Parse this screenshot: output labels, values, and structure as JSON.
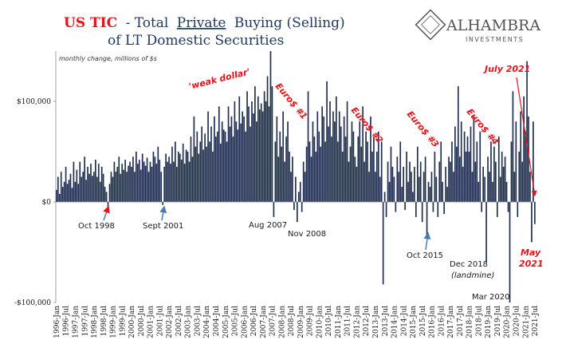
{
  "chart_data": {
    "type": "bar",
    "title_parts": [
      "US TIC",
      "- Total",
      "Private",
      "Buying (Selling)"
    ],
    "title_line2": "of LT Domestic Securities",
    "subtitle": "monthly change, millions of $s",
    "logo": [
      "ALHAMBRA",
      "INVESTMENTS"
    ],
    "annotations": {
      "weak_dollar": "'weak dollar'",
      "euro1": "Euro$ #1",
      "euro2": "Euro$ #2",
      "euro3": "Euro$ #3",
      "euro4": "Euro$ #4",
      "july2021": "July 2021",
      "may2021": [
        "May",
        "2021"
      ],
      "oct1998": "Oct 1998",
      "sept2001": "Sept 2001",
      "aug2007": "Aug 2007",
      "nov2008": "Nov 2008",
      "oct2015": "Oct 2015",
      "dec2018": [
        "Dec 2018",
        "(landmine)"
      ],
      "mar2020": "Mar 2020"
    },
    "color": "#1f2d4e",
    "ylim": [
      -100000,
      150000
    ],
    "yticks": [
      {
        "value": -100000,
        "label": "-$100,000"
      },
      {
        "value": 0,
        "label": "$0"
      },
      {
        "value": 100000,
        "label": "$100,000"
      }
    ],
    "categories": [
      "1996-Jan",
      null,
      null,
      null,
      null,
      null,
      "1996-Jul",
      null,
      null,
      null,
      null,
      null,
      "1997-Jan",
      null,
      null,
      null,
      null,
      null,
      "1997-Jul",
      null,
      null,
      null,
      null,
      null,
      "1998-Jan",
      null,
      null,
      null,
      null,
      null,
      "1998-Jul",
      null,
      null,
      null,
      null,
      null,
      "1999-Jan",
      null,
      null,
      null,
      null,
      null,
      "1999-Jul",
      null,
      null,
      null,
      null,
      null,
      "2000-Jan",
      null,
      null,
      null,
      null,
      null,
      "2000-Jul",
      null,
      null,
      null,
      null,
      null,
      "2001-Jan",
      null,
      null,
      null,
      null,
      null,
      "2001-Jul",
      null,
      null,
      null,
      null,
      null,
      "2002-Jan",
      null,
      null,
      null,
      null,
      null,
      "2002-Jul",
      null,
      null,
      null,
      null,
      null,
      "2003-Jan",
      null,
      null,
      null,
      null,
      null,
      "2003-Jul",
      null,
      null,
      null,
      null,
      null,
      "2004-Jan",
      null,
      null,
      null,
      null,
      null,
      "2004-Jul",
      null,
      null,
      null,
      null,
      null,
      "2005-Jan",
      null,
      null,
      null,
      null,
      null,
      "2005-Jul",
      null,
      null,
      null,
      null,
      null,
      "2006-Jan",
      null,
      null,
      null,
      null,
      null,
      "2006-Jul",
      null,
      null,
      null,
      null,
      null,
      "2007-Jan",
      null,
      null,
      null,
      null,
      null,
      "2007-Jul",
      null,
      null,
      null,
      null,
      null,
      "2008-Jan",
      null,
      null,
      null,
      null,
      null,
      "2008-Jul",
      null,
      null,
      null,
      null,
      null,
      "2009-Jan",
      null,
      null,
      null,
      null,
      null,
      "2009-Jul",
      null,
      null,
      null,
      null,
      null,
      "2010-Jan",
      null,
      null,
      null,
      null,
      null,
      "2010-Jul",
      null,
      null,
      null,
      null,
      null,
      "2011-Jan",
      null,
      null,
      null,
      null,
      null,
      "2011-Jul",
      null,
      null,
      null,
      null,
      null,
      "2012-Jan",
      null,
      null,
      null,
      null,
      null,
      "2012-Jul",
      null,
      null,
      null,
      null,
      null,
      "2013-Jan",
      null,
      null,
      null,
      null,
      null,
      "2013-Jul",
      null,
      null,
      null,
      null,
      null,
      "2014-Jan",
      null,
      null,
      null,
      null,
      null,
      "2014-Jul",
      null,
      null,
      null,
      null,
      null,
      "2015-Jan",
      null,
      null,
      null,
      null,
      null,
      "2015-Jul",
      null,
      null,
      null,
      null,
      null,
      "2016-Jan",
      null,
      null,
      null,
      null,
      null,
      "2016-Jul",
      null,
      null,
      null,
      null,
      null,
      "2017-Jan",
      null,
      null,
      null,
      null,
      null,
      "2017-Jul",
      null,
      null,
      null,
      null,
      null,
      "2018-Jan",
      null,
      null,
      null,
      null,
      null,
      "2018-Jul",
      null,
      null,
      null,
      null,
      null,
      "2019-Jan",
      null,
      null,
      null,
      null,
      null,
      "2019-Jul",
      null,
      null,
      null,
      null,
      null,
      "2020-Jan",
      null,
      null,
      null,
      null,
      null,
      "2020-Jul",
      null,
      null,
      null,
      null,
      null,
      "2021-Jan",
      null,
      null,
      null,
      null,
      null,
      "2021-Jul"
    ],
    "values": [
      12000,
      25000,
      8000,
      30000,
      15000,
      20000,
      35000,
      18000,
      22000,
      28000,
      14000,
      40000,
      20000,
      32000,
      18000,
      40000,
      25000,
      30000,
      45000,
      22000,
      35000,
      28000,
      38000,
      26000,
      30000,
      42000,
      25000,
      38000,
      20000,
      35000,
      28000,
      15000,
      10000,
      -5000,
      18000,
      30000,
      25000,
      40000,
      30000,
      35000,
      45000,
      28000,
      38000,
      32000,
      42000,
      30000,
      36000,
      40000,
      35000,
      45000,
      30000,
      50000,
      38000,
      42000,
      32000,
      48000,
      40000,
      36000,
      44000,
      30000,
      40000,
      35000,
      50000,
      45000,
      38000,
      55000,
      42000,
      30000,
      -3000,
      35000,
      48000,
      40000,
      45000,
      38000,
      55000,
      40000,
      60000,
      35000,
      50000,
      48000,
      42000,
      58000,
      38000,
      52000,
      50000,
      40000,
      65000,
      45000,
      85000,
      55000,
      70000,
      48000,
      60000,
      75000,
      52000,
      68000,
      55000,
      90000,
      60000,
      75000,
      50000,
      85000,
      65000,
      70000,
      95000,
      58000,
      80000,
      72000,
      70000,
      60000,
      95000,
      75000,
      85000,
      65000,
      100000,
      80000,
      72000,
      105000,
      78000,
      90000,
      85000,
      70000,
      110000,
      95000,
      75000,
      100000,
      88000,
      115000,
      80000,
      105000,
      92000,
      98000,
      90000,
      110000,
      100000,
      125000,
      95000,
      150000,
      115000,
      -15000,
      60000,
      85000,
      45000,
      70000,
      55000,
      90000,
      40000,
      65000,
      80000,
      50000,
      30000,
      45000,
      -8000,
      25000,
      -20000,
      10000,
      20000,
      -10000,
      40000,
      30000,
      55000,
      110000,
      60000,
      45000,
      80000,
      65000,
      50000,
      90000,
      70000,
      55000,
      95000,
      85000,
      60000,
      120000,
      75000,
      100000,
      65000,
      90000,
      80000,
      105000,
      60000,
      90000,
      75000,
      50000,
      85000,
      65000,
      100000,
      40000,
      55000,
      80000,
      70000,
      45000,
      35000,
      65000,
      80000,
      55000,
      95000,
      40000,
      70000,
      60000,
      30000,
      85000,
      50000,
      65000,
      30000,
      50000,
      70000,
      25000,
      60000,
      -82000,
      10000,
      -15000,
      40000,
      20000,
      55000,
      35000,
      25000,
      -10000,
      45000,
      30000,
      60000,
      15000,
      35000,
      -8000,
      50000,
      20000,
      40000,
      30000,
      10000,
      35000,
      -15000,
      55000,
      25000,
      40000,
      -20000,
      30000,
      45000,
      -35000,
      20000,
      15000,
      30000,
      -10000,
      50000,
      25000,
      -15000,
      40000,
      60000,
      20000,
      -12000,
      35000,
      15000,
      45000,
      40000,
      60000,
      30000,
      75000,
      55000,
      115000,
      45000,
      80000,
      35000,
      70000,
      50000,
      65000,
      50000,
      75000,
      30000,
      85000,
      40000,
      60000,
      20000,
      70000,
      -10000,
      35000,
      25000,
      -60000,
      45000,
      30000,
      60000,
      20000,
      55000,
      40000,
      -15000,
      65000,
      25000,
      50000,
      35000,
      45000,
      20000,
      -10000,
      -100000,
      60000,
      110000,
      30000,
      80000,
      -15000,
      50000,
      90000,
      40000,
      105000,
      70000,
      140000,
      85000,
      30000,
      -40000,
      80000,
      -22000
    ]
  }
}
